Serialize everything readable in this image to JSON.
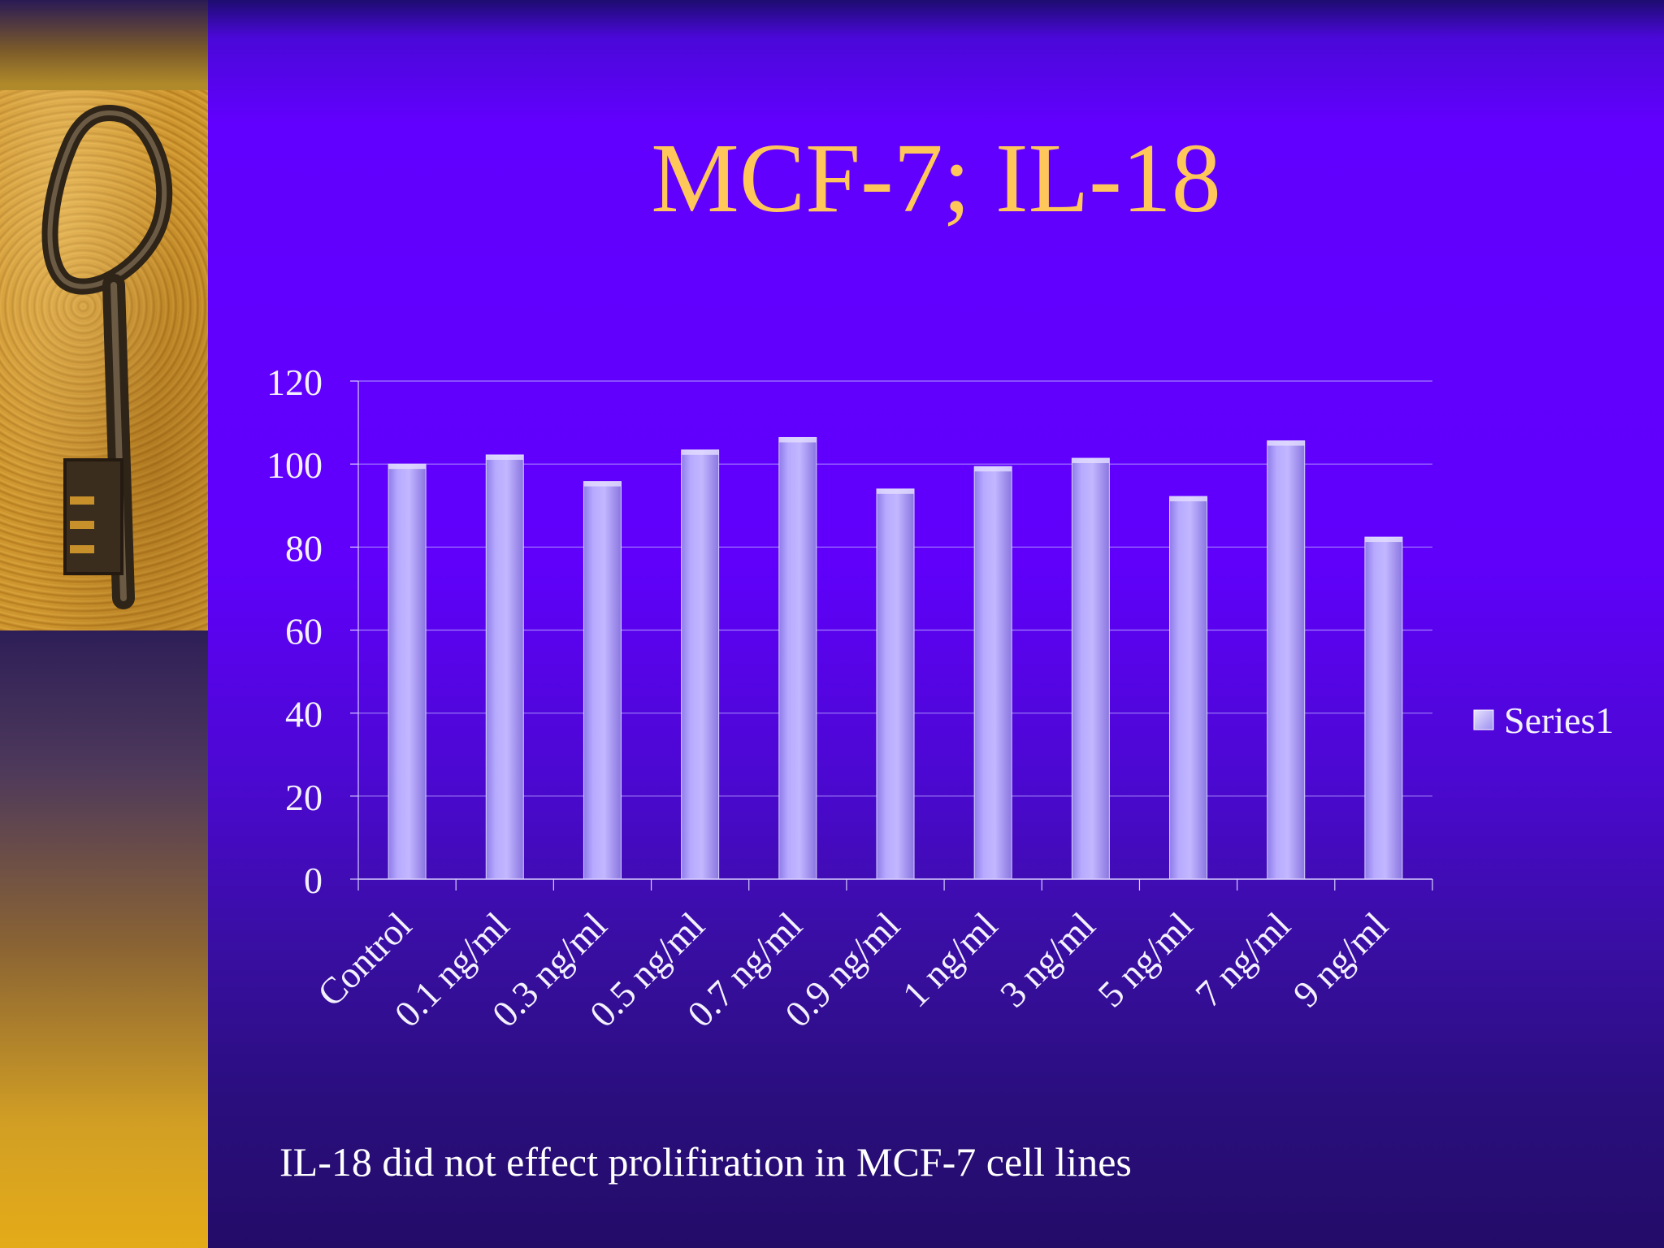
{
  "slide": {
    "title": "MCF-7; IL-18",
    "caption": "IL-18 did not effect prolifiration in MCF-7 cell lines",
    "colors": {
      "title": "#ffc65a",
      "background": "#6000fb",
      "bar": "#b3a5ff",
      "sidebar_gold": "#e4ab18"
    },
    "image": "key-photo"
  },
  "chart_data": {
    "type": "bar",
    "title": "",
    "xlabel": "",
    "ylabel": "",
    "categories": [
      "Control",
      "0.1 ng/ml",
      "0.3 ng/ml",
      "0.5 ng/ml",
      "0.7 ng/ml",
      "0.9 ng/ml",
      "1 ng/ml",
      "3 ng/ml",
      "5 ng/ml",
      "7 ng/ml",
      "9 ng/ml"
    ],
    "series": [
      {
        "name": "Series1",
        "values": [
          100,
          102.2,
          95.8,
          103.4,
          106.4,
          94,
          99.4,
          101.4,
          92.2,
          105.6,
          82.4
        ]
      }
    ],
    "ylim": [
      0,
      120
    ],
    "yticks": [
      "0",
      "20",
      "40",
      "60",
      "80",
      "100",
      "120"
    ],
    "grid": true,
    "legend": "right"
  }
}
